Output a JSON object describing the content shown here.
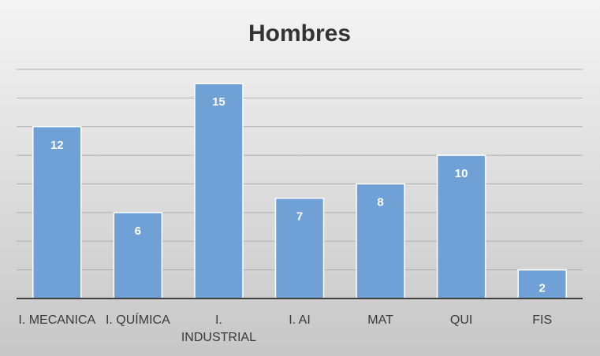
{
  "chart_data": {
    "type": "bar",
    "title": "Hombres",
    "xlabel": "",
    "ylabel": "",
    "categories": [
      "I. MECANICA",
      "I. QUÍMICA",
      "I. INDUSTRIAL",
      "I. AI",
      "MAT",
      "QUI",
      "FIS"
    ],
    "category_lines": [
      [
        "I. MECANICA"
      ],
      [
        "I. QUÍMICA"
      ],
      [
        "I.",
        "INDUSTRIAL"
      ],
      [
        "I. AI"
      ],
      [
        "MAT"
      ],
      [
        "QUI"
      ],
      [
        "FIS"
      ]
    ],
    "values": [
      12,
      6,
      15,
      7,
      8,
      10,
      2
    ],
    "ylim": [
      0,
      16
    ],
    "grid": true,
    "data_labels": true,
    "legend": "none",
    "colors": {
      "bar_fill": "#6fa0d6",
      "bar_stroke": "#ffffff",
      "grid": "#aeaeae",
      "axis": "#404040"
    }
  }
}
